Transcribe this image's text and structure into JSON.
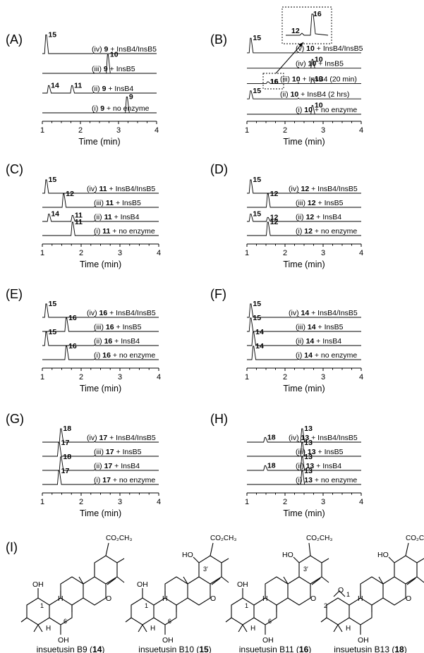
{
  "panel_tags": [
    "(A)",
    "(B)",
    "(C)",
    "(D)",
    "(E)",
    "(F)",
    "(G)",
    "(H)",
    "(I)"
  ],
  "chart_data": [
    {
      "type": "line",
      "panel": "(A)",
      "xlabel": "Time (min)",
      "xlim": [
        1,
        4
      ],
      "xticks": [
        "1",
        "2",
        "3",
        "4"
      ],
      "traces": [
        {
          "label": "(iv) 9 + InsB4/InsB5",
          "peaks": [
            {
              "x": 1.1,
              "h": 1.0,
              "label": "15"
            }
          ]
        },
        {
          "label": "(iii) 9 + InsB5",
          "peaks": [
            {
              "x": 2.72,
              "h": 1.0,
              "label": "10"
            }
          ]
        },
        {
          "label": "(ii) 9 + InsB4",
          "peaks": [
            {
              "x": 1.17,
              "h": 0.4,
              "label": "14"
            },
            {
              "x": 1.78,
              "h": 0.4,
              "label": "11"
            }
          ]
        },
        {
          "label": "(i) 9 + no enzyme",
          "peaks": [
            {
              "x": 3.22,
              "h": 0.85,
              "label": "9"
            }
          ]
        }
      ]
    },
    {
      "type": "line",
      "panel": "(B)",
      "xlabel": "Time (min)",
      "xlim": [
        1,
        4
      ],
      "xticks": [
        "1",
        "2",
        "3",
        "4"
      ],
      "traces": [
        {
          "label": "(v) 10 + InsB4/InsB5",
          "peaks": [
            {
              "x": 1.1,
              "h": 1.0,
              "label": "15"
            }
          ]
        },
        {
          "label": "(iv) 10 + InsB5",
          "peaks": [
            {
              "x": 2.72,
              "h": 0.6,
              "label": "10"
            }
          ]
        },
        {
          "label": "(iii) 10 + InsB4 (20 min)",
          "peaks": [
            {
              "x": 1.55,
              "h": 0.12,
              "label": "16"
            },
            {
              "x": 2.72,
              "h": 0.3,
              "label": "10"
            }
          ]
        },
        {
          "label": "(ii) 10 + InsB4 (2 hrs)",
          "peaks": [
            {
              "x": 1.1,
              "h": 0.55,
              "label": "15"
            }
          ]
        },
        {
          "label": "(i) 10 + no enzyme",
          "peaks": [
            {
              "x": 2.72,
              "h": 0.6,
              "label": "10"
            }
          ]
        }
      ],
      "inset": {
        "labels": [
          "16",
          "12"
        ]
      }
    },
    {
      "type": "line",
      "panel": "(C)",
      "xlabel": "Time (min)",
      "xlim": [
        1,
        4
      ],
      "xticks": [
        "1",
        "2",
        "3",
        "4"
      ],
      "traces": [
        {
          "label": "(iv) 11 + InsB4/InsB5",
          "peaks": [
            {
              "x": 1.1,
              "h": 1.0,
              "label": "15"
            }
          ]
        },
        {
          "label": "(iii) 11 + InsB5",
          "peaks": [
            {
              "x": 1.55,
              "h": 1.0,
              "label": "12"
            }
          ]
        },
        {
          "label": "(ii) 11 + InsB4",
          "peaks": [
            {
              "x": 1.17,
              "h": 0.55,
              "label": "14"
            },
            {
              "x": 1.78,
              "h": 0.45,
              "label": "11"
            }
          ]
        },
        {
          "label": "(i) 11 + no enzyme",
          "peaks": [
            {
              "x": 1.78,
              "h": 1.0,
              "label": "11"
            }
          ]
        }
      ]
    },
    {
      "type": "line",
      "panel": "(D)",
      "xlabel": "Time (min)",
      "xlim": [
        1,
        4
      ],
      "xticks": [
        "1",
        "2",
        "3",
        "4"
      ],
      "traces": [
        {
          "label": "(iv) 12 + InsB4/InsB5",
          "peaks": [
            {
              "x": 1.1,
              "h": 1.0,
              "label": "15"
            }
          ]
        },
        {
          "label": "(iii) 12 + InsB5",
          "peaks": [
            {
              "x": 1.55,
              "h": 1.0,
              "label": "12"
            }
          ]
        },
        {
          "label": "(ii) 12 + InsB4",
          "peaks": [
            {
              "x": 1.1,
              "h": 0.55,
              "label": "15"
            },
            {
              "x": 1.55,
              "h": 0.3,
              "label": "12"
            }
          ]
        },
        {
          "label": "(i) 12 + no enzyme",
          "peaks": [
            {
              "x": 1.55,
              "h": 1.0,
              "label": "12"
            }
          ]
        }
      ]
    },
    {
      "type": "line",
      "panel": "(E)",
      "xlabel": "Time (min)",
      "xlim": [
        1,
        4
      ],
      "xticks": [
        "1",
        "2",
        "3",
        "4"
      ],
      "traces": [
        {
          "label": "(iv) 16 + InsB4/InsB5",
          "peaks": [
            {
              "x": 1.1,
              "h": 1.0,
              "label": "15"
            }
          ]
        },
        {
          "label": "(iii) 16 + InsB5",
          "peaks": [
            {
              "x": 1.62,
              "h": 1.0,
              "label": "16"
            }
          ]
        },
        {
          "label": "(ii) 16 + InsB4",
          "peaks": [
            {
              "x": 1.1,
              "h": 1.0,
              "label": "15"
            }
          ]
        },
        {
          "label": "(i) 16 + no enzyme",
          "peaks": [
            {
              "x": 1.62,
              "h": 1.0,
              "label": "16"
            }
          ]
        }
      ]
    },
    {
      "type": "line",
      "panel": "(F)",
      "xlabel": "Time (min)",
      "xlim": [
        1,
        4
      ],
      "xticks": [
        "1",
        "2",
        "3",
        "4"
      ],
      "traces": [
        {
          "label": "(iv) 14 + InsB4/InsB5",
          "peaks": [
            {
              "x": 1.1,
              "h": 1.0,
              "label": "15"
            }
          ]
        },
        {
          "label": "(iii) 14 + InsB5",
          "peaks": [
            {
              "x": 1.1,
              "h": 1.0,
              "label": "15"
            }
          ]
        },
        {
          "label": "(ii) 14 + InsB4",
          "peaks": [
            {
              "x": 1.17,
              "h": 1.0,
              "label": "14"
            }
          ]
        },
        {
          "label": "(i) 14 + no enzyme",
          "peaks": [
            {
              "x": 1.17,
              "h": 1.0,
              "label": "14"
            }
          ]
        }
      ]
    },
    {
      "type": "line",
      "panel": "(G)",
      "xlabel": "Time (min)",
      "xlim": [
        1,
        4
      ],
      "xticks": [
        "1",
        "2",
        "3",
        "4"
      ],
      "traces": [
        {
          "label": "(iv) 17 + InsB4/InsB5",
          "peaks": [
            {
              "x": 1.48,
              "h": 1.0,
              "label": "18"
            }
          ]
        },
        {
          "label": "(iii) 17 + InsB5",
          "peaks": [
            {
              "x": 1.43,
              "h": 1.0,
              "label": "17"
            }
          ]
        },
        {
          "label": "(ii) 17 + InsB4",
          "peaks": [
            {
              "x": 1.48,
              "h": 1.0,
              "label": "18"
            }
          ]
        },
        {
          "label": "(i) 17 + no enzyme",
          "peaks": [
            {
              "x": 1.43,
              "h": 1.0,
              "label": "17"
            }
          ]
        }
      ]
    },
    {
      "type": "line",
      "panel": "(H)",
      "xlabel": "Time (min)",
      "xlim": [
        1,
        4
      ],
      "xticks": [
        "1",
        "2",
        "3",
        "4"
      ],
      "traces": [
        {
          "label": "(iv) 13 + InsB4/InsB5",
          "peaks": [
            {
              "x": 1.48,
              "h": 0.35,
              "label": "18"
            },
            {
              "x": 2.45,
              "h": 1.0,
              "label": "13"
            }
          ]
        },
        {
          "label": "(iii) 13 + InsB5",
          "peaks": [
            {
              "x": 2.45,
              "h": 1.0,
              "label": "13"
            }
          ]
        },
        {
          "label": "(ii) 13 + InsB4",
          "peaks": [
            {
              "x": 1.48,
              "h": 0.35,
              "label": "18"
            },
            {
              "x": 2.45,
              "h": 1.0,
              "label": "13"
            }
          ]
        },
        {
          "label": "(i) 13 + no enzyme",
          "peaks": [
            {
              "x": 2.45,
              "h": 1.0,
              "label": "13"
            }
          ]
        }
      ]
    }
  ],
  "structures": {
    "compounds": [
      {
        "name": "insuetusin B9",
        "number": "14"
      },
      {
        "name": "insuetusin B10",
        "number": "15"
      },
      {
        "name": "insuetusin B11",
        "number": "16"
      },
      {
        "name": "insuetusin B13",
        "number": "18"
      }
    ],
    "atom_labels": {
      "ester": "CO₂CH₃",
      "hydroxyl": "OH",
      "hydroxyl_left": "HO",
      "oxygen": "O",
      "hydrogen": "H",
      "pos_1": "1",
      "pos_2": "2",
      "pos_6": "6",
      "pos_3p": "3′"
    }
  }
}
